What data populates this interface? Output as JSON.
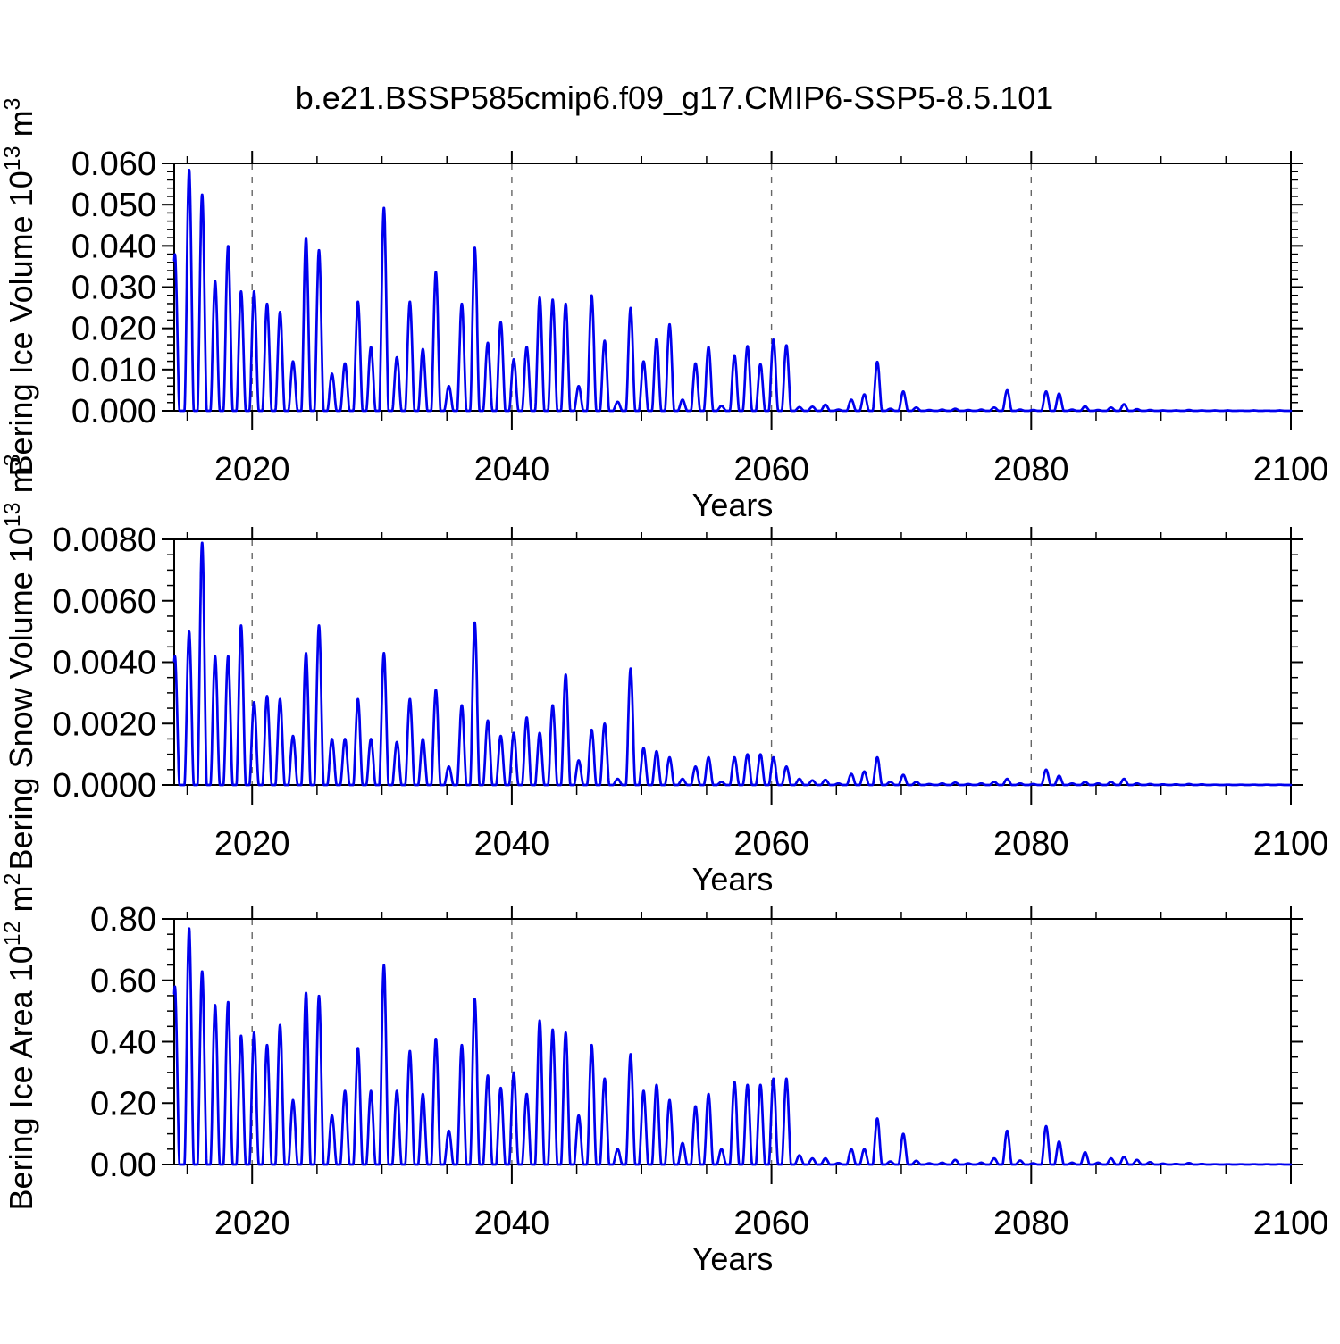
{
  "chart_data": {
    "type": "line",
    "title": "b.e21.BSSP585cmip6.f09_g17.CMIP6-SSP5-8.5.101",
    "line_color": "#0000ee",
    "grid_color": "#666666",
    "axis_color": "#000000",
    "x": {
      "label": "Years",
      "lim": [
        2014,
        2100
      ],
      "major_ticks": [
        2020,
        2040,
        2060,
        2080,
        2100
      ],
      "minor_step": 5,
      "grid_years": [
        2020,
        2040,
        2060,
        2080
      ]
    },
    "years": [
      2014,
      2015,
      2016,
      2017,
      2018,
      2019,
      2020,
      2021,
      2022,
      2023,
      2024,
      2025,
      2026,
      2027,
      2028,
      2029,
      2030,
      2031,
      2032,
      2033,
      2034,
      2035,
      2036,
      2037,
      2038,
      2039,
      2040,
      2041,
      2042,
      2043,
      2044,
      2045,
      2046,
      2047,
      2048,
      2049,
      2050,
      2051,
      2052,
      2053,
      2054,
      2055,
      2056,
      2057,
      2058,
      2059,
      2060,
      2061,
      2062,
      2063,
      2064,
      2065,
      2066,
      2067,
      2068,
      2069,
      2070,
      2071,
      2072,
      2073,
      2074,
      2075,
      2076,
      2077,
      2078,
      2079,
      2080,
      2081,
      2082,
      2083,
      2084,
      2085,
      2086,
      2087,
      2088,
      2089,
      2090,
      2091,
      2092,
      2093,
      2094,
      2095,
      2096,
      2097,
      2098,
      2099,
      2100
    ],
    "seasonality_note": "Each year shows one winter spike rising from and returning to zero; values below are annual peak maxima.",
    "panels": [
      {
        "name": "bering-ice-volume",
        "ylabel": "Bering Ice Volume 10^13 m^3",
        "ylabel_parts": [
          {
            "t": "Bering Ice Volume 10"
          },
          {
            "t": "13",
            "sup": true
          },
          {
            "t": " m"
          },
          {
            "t": "3",
            "sup": true
          }
        ],
        "ylim": [
          0,
          0.06
        ],
        "y_major_step": 0.01,
        "y_minor_step": 0.002,
        "y_tick_decimals": 3,
        "annual_peaks": [
          0.038,
          0.0585,
          0.0525,
          0.0315,
          0.04,
          0.029,
          0.029,
          0.026,
          0.024,
          0.012,
          0.042,
          0.039,
          0.009,
          0.0115,
          0.0265,
          0.0155,
          0.0493,
          0.013,
          0.0265,
          0.015,
          0.0337,
          0.006,
          0.026,
          0.0396,
          0.0165,
          0.0215,
          0.0125,
          0.0155,
          0.0275,
          0.027,
          0.026,
          0.006,
          0.028,
          0.017,
          0.0022,
          0.025,
          0.012,
          0.0175,
          0.021,
          0.0027,
          0.0115,
          0.0155,
          0.0012,
          0.0135,
          0.0157,
          0.0113,
          0.0173,
          0.0159,
          0.0009,
          0.001,
          0.0015,
          0.0003,
          0.0027,
          0.004,
          0.0119,
          0.0005,
          0.0047,
          0.0008,
          0.0002,
          0.0003,
          0.0005,
          0.0002,
          0.0003,
          0.0008,
          0.005,
          0.0003,
          0.0002,
          0.0047,
          0.0042,
          0.0003,
          0.0011,
          0.0002,
          0.0008,
          0.0016,
          0.0004,
          0.0002,
          0.0001,
          0.0001,
          0.0002,
          0.0001,
          0.0001,
          0.0001,
          5e-05,
          0.0001,
          5e-05,
          0.0001,
          0
        ]
      },
      {
        "name": "bering-snow-volume",
        "ylabel": "Bering Snow Volume 10^13 m^3",
        "ylabel_parts": [
          {
            "t": "Bering Snow Volume 10"
          },
          {
            "t": "13",
            "sup": true
          },
          {
            "t": " m"
          },
          {
            "t": "3",
            "sup": true
          }
        ],
        "ylim": [
          0,
          0.008
        ],
        "y_major_step": 0.002,
        "y_minor_step": 0.0005,
        "y_tick_decimals": 4,
        "annual_peaks": [
          0.0042,
          0.005,
          0.0079,
          0.0042,
          0.0042,
          0.0052,
          0.0027,
          0.0029,
          0.0028,
          0.0016,
          0.0043,
          0.0052,
          0.0015,
          0.0015,
          0.0028,
          0.0015,
          0.0043,
          0.0014,
          0.0028,
          0.0015,
          0.0031,
          0.0006,
          0.0026,
          0.0053,
          0.0021,
          0.0016,
          0.0017,
          0.0022,
          0.0017,
          0.0026,
          0.0036,
          0.0008,
          0.0018,
          0.002,
          0.0002,
          0.0038,
          0.0012,
          0.0011,
          0.0009,
          0.0002,
          0.0006,
          0.0009,
          0.0001,
          0.0009,
          0.001,
          0.001,
          0.0009,
          0.0006,
          0.0002,
          0.00015,
          0.00017,
          5e-05,
          0.00036,
          0.00044,
          0.0009,
          0.0001,
          0.00033,
          0.0001,
          3e-05,
          5e-05,
          8e-05,
          3e-05,
          5e-05,
          0.0001,
          0.0002,
          5e-05,
          3e-05,
          0.0005,
          0.0003,
          5e-05,
          0.0001,
          5e-05,
          0.0001,
          0.0002,
          5e-05,
          3e-05,
          2e-05,
          2e-05,
          3e-05,
          2e-05,
          1e-05,
          1e-05,
          1e-05,
          1e-05,
          1e-05,
          1e-05,
          0
        ]
      },
      {
        "name": "bering-ice-area",
        "ylabel": "Bering Ice Area 10^12 m^2",
        "ylabel_parts": [
          {
            "t": "Bering Ice Area 10"
          },
          {
            "t": "12",
            "sup": true
          },
          {
            "t": " m"
          },
          {
            "t": "2",
            "sup": true
          }
        ],
        "ylim": [
          0,
          0.8
        ],
        "y_major_step": 0.2,
        "y_minor_step": 0.05,
        "y_tick_decimals": 2,
        "annual_peaks": [
          0.58,
          0.77,
          0.63,
          0.52,
          0.53,
          0.42,
          0.43,
          0.39,
          0.455,
          0.21,
          0.56,
          0.55,
          0.16,
          0.24,
          0.38,
          0.24,
          0.65,
          0.24,
          0.37,
          0.23,
          0.41,
          0.11,
          0.39,
          0.54,
          0.29,
          0.25,
          0.3,
          0.23,
          0.47,
          0.44,
          0.43,
          0.16,
          0.39,
          0.28,
          0.05,
          0.36,
          0.24,
          0.26,
          0.21,
          0.07,
          0.19,
          0.23,
          0.05,
          0.27,
          0.26,
          0.26,
          0.28,
          0.28,
          0.03,
          0.02,
          0.02,
          0.005,
          0.05,
          0.05,
          0.15,
          0.01,
          0.1,
          0.012,
          0.004,
          0.006,
          0.015,
          0.004,
          0.006,
          0.02,
          0.11,
          0.013,
          0.004,
          0.125,
          0.075,
          0.006,
          0.04,
          0.006,
          0.02,
          0.025,
          0.015,
          0.008,
          0.003,
          0.002,
          0.005,
          0.002,
          0.001,
          0.001,
          0.001,
          0.001,
          0.001,
          0.001,
          0
        ]
      }
    ]
  }
}
